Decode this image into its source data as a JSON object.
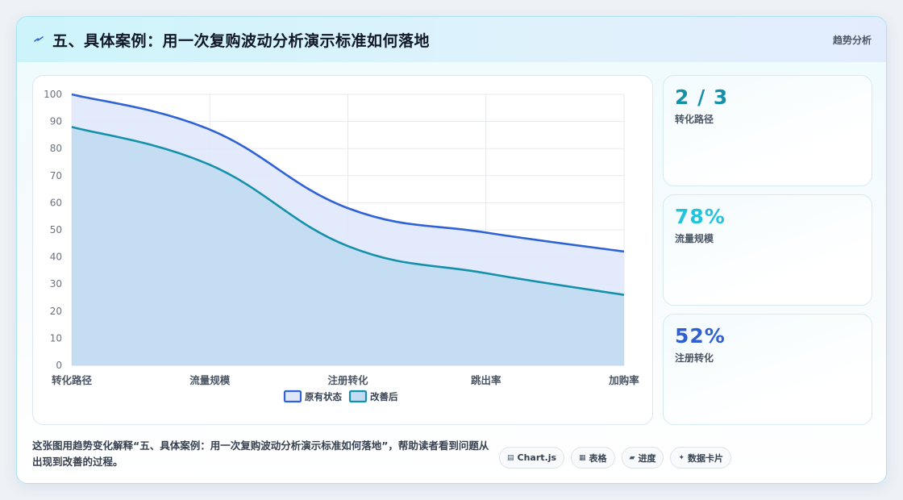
{
  "header": {
    "title": "五、具体案例：用一次复购波动分析演示标准如何落地",
    "tag": "趋势分析",
    "icon": "spark-icon"
  },
  "stats": [
    {
      "value": "2 / 3",
      "label": "转化路径",
      "color": "#1490a8"
    },
    {
      "value": "78%",
      "label": "流量规模",
      "color": "#22c4dc"
    },
    {
      "value": "52%",
      "label": "注册转化",
      "color": "#2f5fd0"
    }
  ],
  "footer": {
    "text": "这张图用趋势变化解释“五、具体案例：用一次复购波动分析演示标准如何落地”，帮助读者看到问题从出现到改善的过程。",
    "chips": [
      {
        "icon": "▤",
        "icon_name": "chart-icon",
        "label": "Chart.js"
      },
      {
        "icon": "▦",
        "icon_name": "table-icon",
        "label": "表格"
      },
      {
        "icon": "▰",
        "icon_name": "progress-icon",
        "label": "进度"
      },
      {
        "icon": "✦",
        "icon_name": "sparkle-icon",
        "label": "数据卡片"
      }
    ]
  },
  "chart_data": {
    "type": "area",
    "categories": [
      "转化路径",
      "流量规模",
      "注册转化",
      "跳出率",
      "加购率"
    ],
    "series": [
      {
        "name": "原有状态",
        "values": [
          100,
          87,
          58,
          49,
          42
        ],
        "color": "#2f62d6",
        "fill": "#dfe8fb"
      },
      {
        "name": "改善后",
        "values": [
          88,
          74,
          44,
          34,
          26
        ],
        "color": "#1590ab",
        "fill": "#c2dcf1"
      }
    ],
    "ylim": [
      0,
      100
    ],
    "yticks": [
      0,
      10,
      20,
      30,
      40,
      50,
      60,
      70,
      80,
      90,
      100
    ],
    "grid": true,
    "legend": "bottom"
  }
}
